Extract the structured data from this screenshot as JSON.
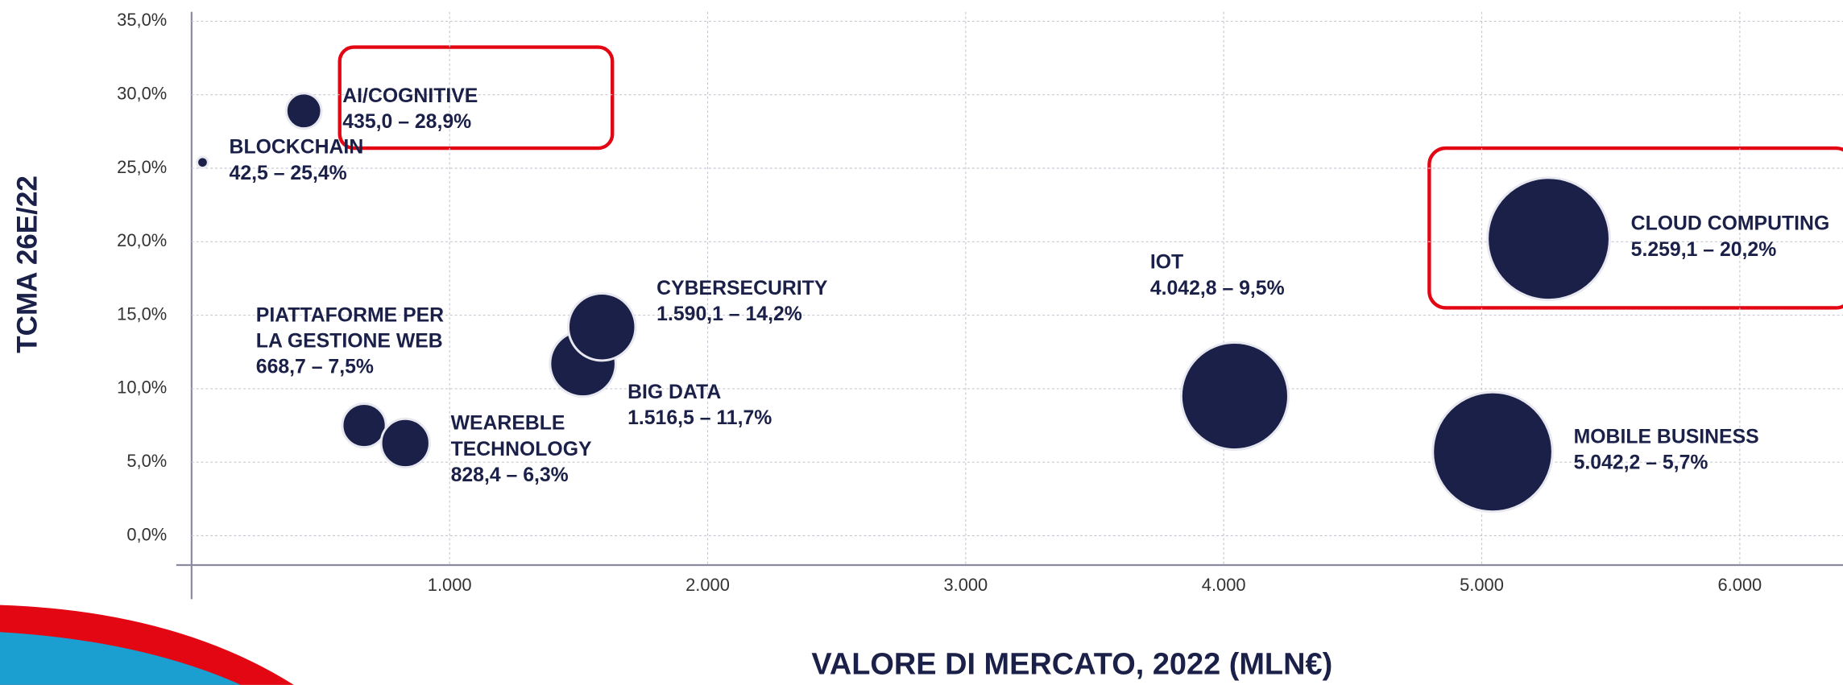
{
  "chart_data": {
    "type": "scatter",
    "x_label": "VALORE DI MERCATO, 2022 (MLN€)",
    "y_label": "TCMA 26E/22",
    "xlim": [
      0,
      6400
    ],
    "ylim": [
      -2,
      35
    ],
    "xticks": [
      {
        "value": 1000,
        "label": "1.000"
      },
      {
        "value": 2000,
        "label": "2.000"
      },
      {
        "value": 3000,
        "label": "3.000"
      },
      {
        "value": 4000,
        "label": "4.000"
      },
      {
        "value": 5000,
        "label": "5.000"
      },
      {
        "value": 6000,
        "label": "6.000"
      }
    ],
    "yticks": [
      {
        "value": 0,
        "label": "0,0%"
      },
      {
        "value": 5,
        "label": "5,0%"
      },
      {
        "value": 10,
        "label": "10,0%"
      },
      {
        "value": 15,
        "label": "15,0%"
      },
      {
        "value": 20,
        "label": "20,0%"
      },
      {
        "value": 25,
        "label": "25,0%"
      },
      {
        "value": 30,
        "label": "30,0%"
      },
      {
        "value": 35,
        "label": "35,0%"
      }
    ],
    "grid": true,
    "series": [
      {
        "color": "#1b2048",
        "labels": [
          [
            "BLOCKCHAIN"
          ],
          [
            "AI/COGNITIVE"
          ],
          [
            "PIATTAFORME PER",
            "LA GESTIONE WEB"
          ],
          [
            "WEAREBLE",
            "TECHNOLOGY"
          ],
          [
            "BIG DATA"
          ],
          [
            "CYBERSECURITY"
          ],
          [
            "IOT"
          ],
          [
            "CLOUD COMPUTING"
          ],
          [
            "MOBILE BUSINESS"
          ]
        ],
        "x": [
          42.5,
          435.0,
          668.7,
          828.4,
          1516.5,
          1590.1,
          4042.8,
          5259.1,
          5042.2
        ],
        "values": [
          25.4,
          28.9,
          7.5,
          6.3,
          11.7,
          14.2,
          9.5,
          20.2,
          5.7
        ],
        "sizes": [
          42.5,
          435.0,
          668.7,
          828.4,
          1516.5,
          1590.1,
          4042.8,
          5259.1,
          5042.2
        ],
        "value_labels": [
          "42,5 – 25,4%",
          "435,0 – 28,9%",
          "668,7 – 7,5%",
          "828,4 – 6,3%",
          "1.516,5 – 11,7%",
          "1.590,1 – 14,2%",
          "4.042,8 – 9,5%",
          "5.259,1 – 20,2%",
          "5.042,2 – 5,7%"
        ]
      }
    ]
  }
}
